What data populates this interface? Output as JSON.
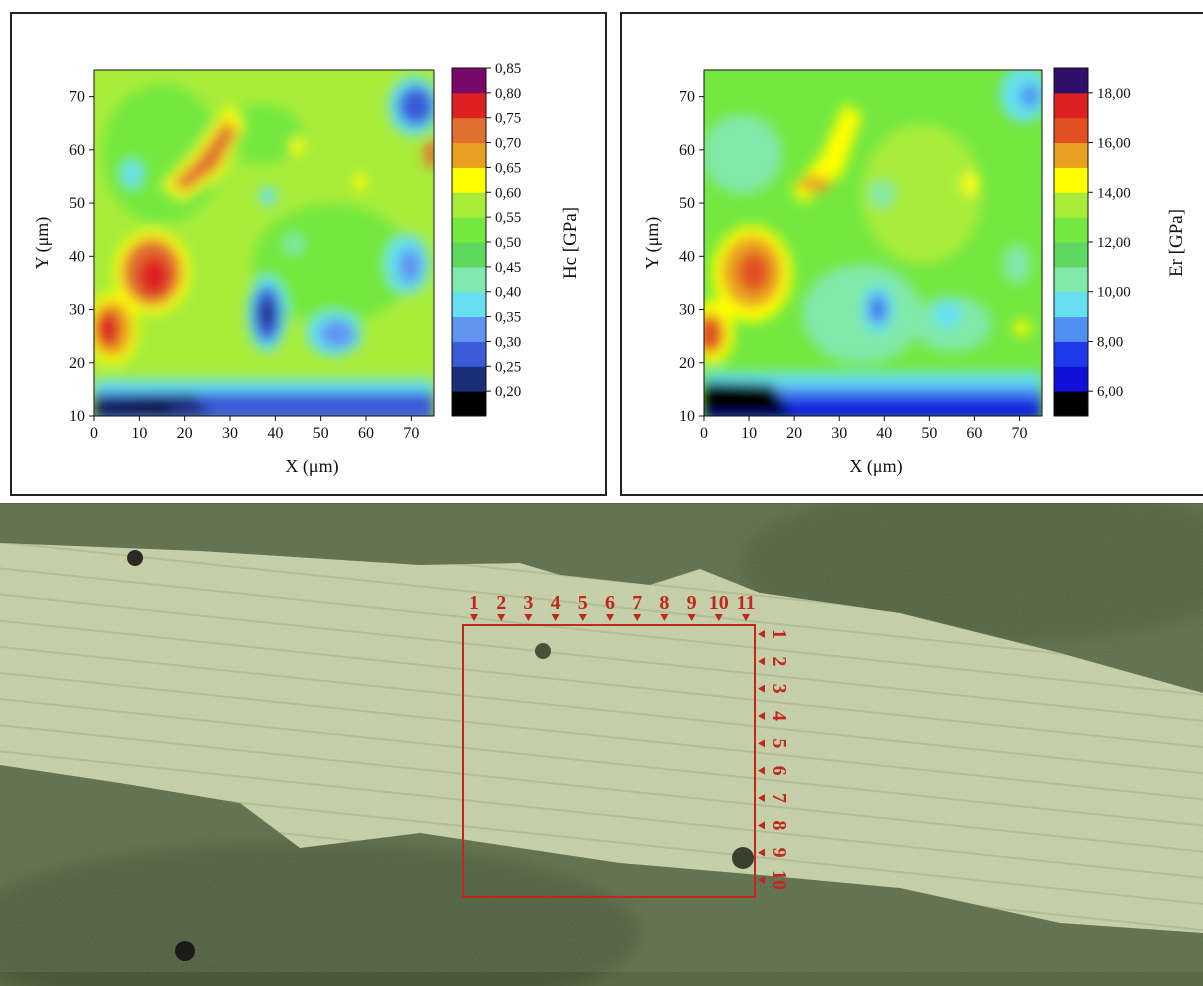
{
  "charts": {
    "hc": {
      "xlabel": "X (μm)",
      "ylabel": "Y (μm)",
      "colorbar_label": "Hc [GPa]"
    },
    "er": {
      "xlabel": "X (μm)",
      "ylabel": "Y (μm)",
      "colorbar_label": "Er [GPa]"
    }
  },
  "chart_data": [
    {
      "type": "heatmap",
      "title": "",
      "xlabel": "X (μm)",
      "ylabel": "Y (μm)",
      "colorbar_label": "Hc [GPa]",
      "xlim": [
        0,
        75
      ],
      "ylim": [
        10,
        75
      ],
      "x_ticks": [
        0,
        10,
        20,
        30,
        40,
        50,
        60,
        70
      ],
      "y_ticks": [
        10,
        20,
        30,
        40,
        50,
        60,
        70
      ],
      "colorbar_ticks": [
        "0,20",
        "0,25",
        "0,30",
        "0,35",
        "0,40",
        "0,45",
        "0,50",
        "0,55",
        "0,60",
        "0,65",
        "0,70",
        "0,75",
        "0,80",
        "0,85"
      ],
      "colorbar_colors": [
        "#000000",
        "#1a2e7a",
        "#3a5cd8",
        "#5f95f0",
        "#66e0f0",
        "#7fe8b0",
        "#5fd860",
        "#74e840",
        "#a8ec3a",
        "#ffff00",
        "#e8a020",
        "#e07030",
        "#dd2020",
        "#7a0a6a"
      ],
      "background_value": 0.57,
      "features": [
        {
          "x": 3,
          "y": 27,
          "value": 0.8
        },
        {
          "x": 13,
          "y": 36,
          "value": 0.82
        },
        {
          "x": 25,
          "y": 57,
          "value": 0.73
        },
        {
          "x": 38,
          "y": 30,
          "value": 0.25
        },
        {
          "x": 53,
          "y": 26,
          "value": 0.38
        },
        {
          "x": 72,
          "y": 68,
          "value": 0.33
        },
        {
          "x": 70,
          "y": 39,
          "value": 0.38
        },
        {
          "x": 8,
          "y": 12,
          "value": 0.2
        }
      ]
    },
    {
      "type": "heatmap",
      "title": "",
      "xlabel": "X (μm)",
      "ylabel": "Y (μm)",
      "colorbar_label": "Er [GPa]",
      "xlim": [
        0,
        75
      ],
      "ylim": [
        10,
        75
      ],
      "x_ticks": [
        0,
        10,
        20,
        30,
        40,
        50,
        60,
        70
      ],
      "y_ticks": [
        10,
        20,
        30,
        40,
        50,
        60,
        70
      ],
      "colorbar_ticks": [
        "6,00",
        "8,00",
        "10,00",
        "12,00",
        "14,00",
        "16,00",
        "18,00"
      ],
      "colorbar_colors": [
        "#000000",
        "#1010d8",
        "#1e3ae8",
        "#5090f0",
        "#66e0f0",
        "#80e8a8",
        "#5fd860",
        "#74e840",
        "#a8ec3a",
        "#ffff00",
        "#e8a020",
        "#e05020",
        "#dd2020",
        "#30106a"
      ],
      "background_value": 12.5,
      "features": [
        {
          "x": 10,
          "y": 37,
          "value": 16.5
        },
        {
          "x": 2,
          "y": 27,
          "value": 16.0
        },
        {
          "x": 25,
          "y": 56,
          "value": 14.5
        },
        {
          "x": 38,
          "y": 30,
          "value": 8.0
        },
        {
          "x": 72,
          "y": 70,
          "value": 9.5
        },
        {
          "x": 10,
          "y": 13,
          "value": 5.5
        }
      ]
    }
  ],
  "photo": {
    "column_labels": [
      "1",
      "2",
      "3",
      "4",
      "5",
      "6",
      "7",
      "8",
      "9",
      "10",
      "11"
    ],
    "row_labels": [
      "1",
      "2",
      "3",
      "4",
      "5",
      "6",
      "7",
      "8",
      "9",
      "10"
    ],
    "grid_color": "#c0281c"
  }
}
